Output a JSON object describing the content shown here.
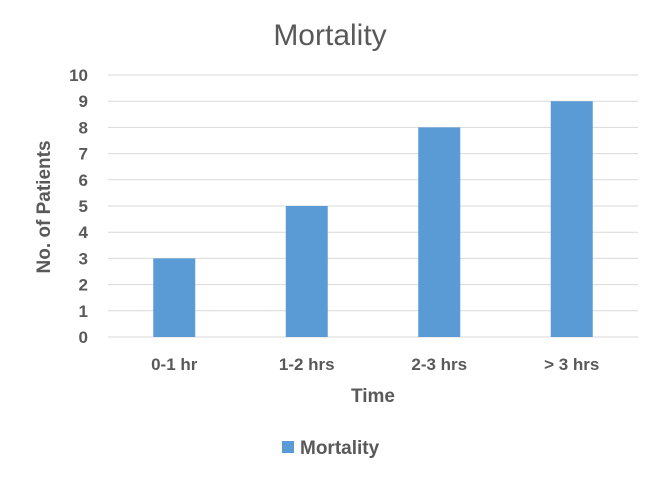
{
  "chart_data": {
    "type": "bar",
    "title": "Mortality",
    "xlabel": "Time",
    "ylabel": "No. of Patients",
    "categories": [
      "0-1 hr",
      "1-2 hrs",
      "2-3 hrs",
      "> 3 hrs"
    ],
    "series": [
      {
        "name": "Mortality",
        "values": [
          3,
          5,
          8,
          9
        ],
        "color": "#5b9bd5"
      }
    ],
    "ylim": [
      0,
      10
    ],
    "yticks": [
      "0",
      "1",
      "2",
      "3",
      "4",
      "5",
      "6",
      "7",
      "8",
      "9",
      "10"
    ],
    "grid": true,
    "legend_position": "bottom"
  }
}
